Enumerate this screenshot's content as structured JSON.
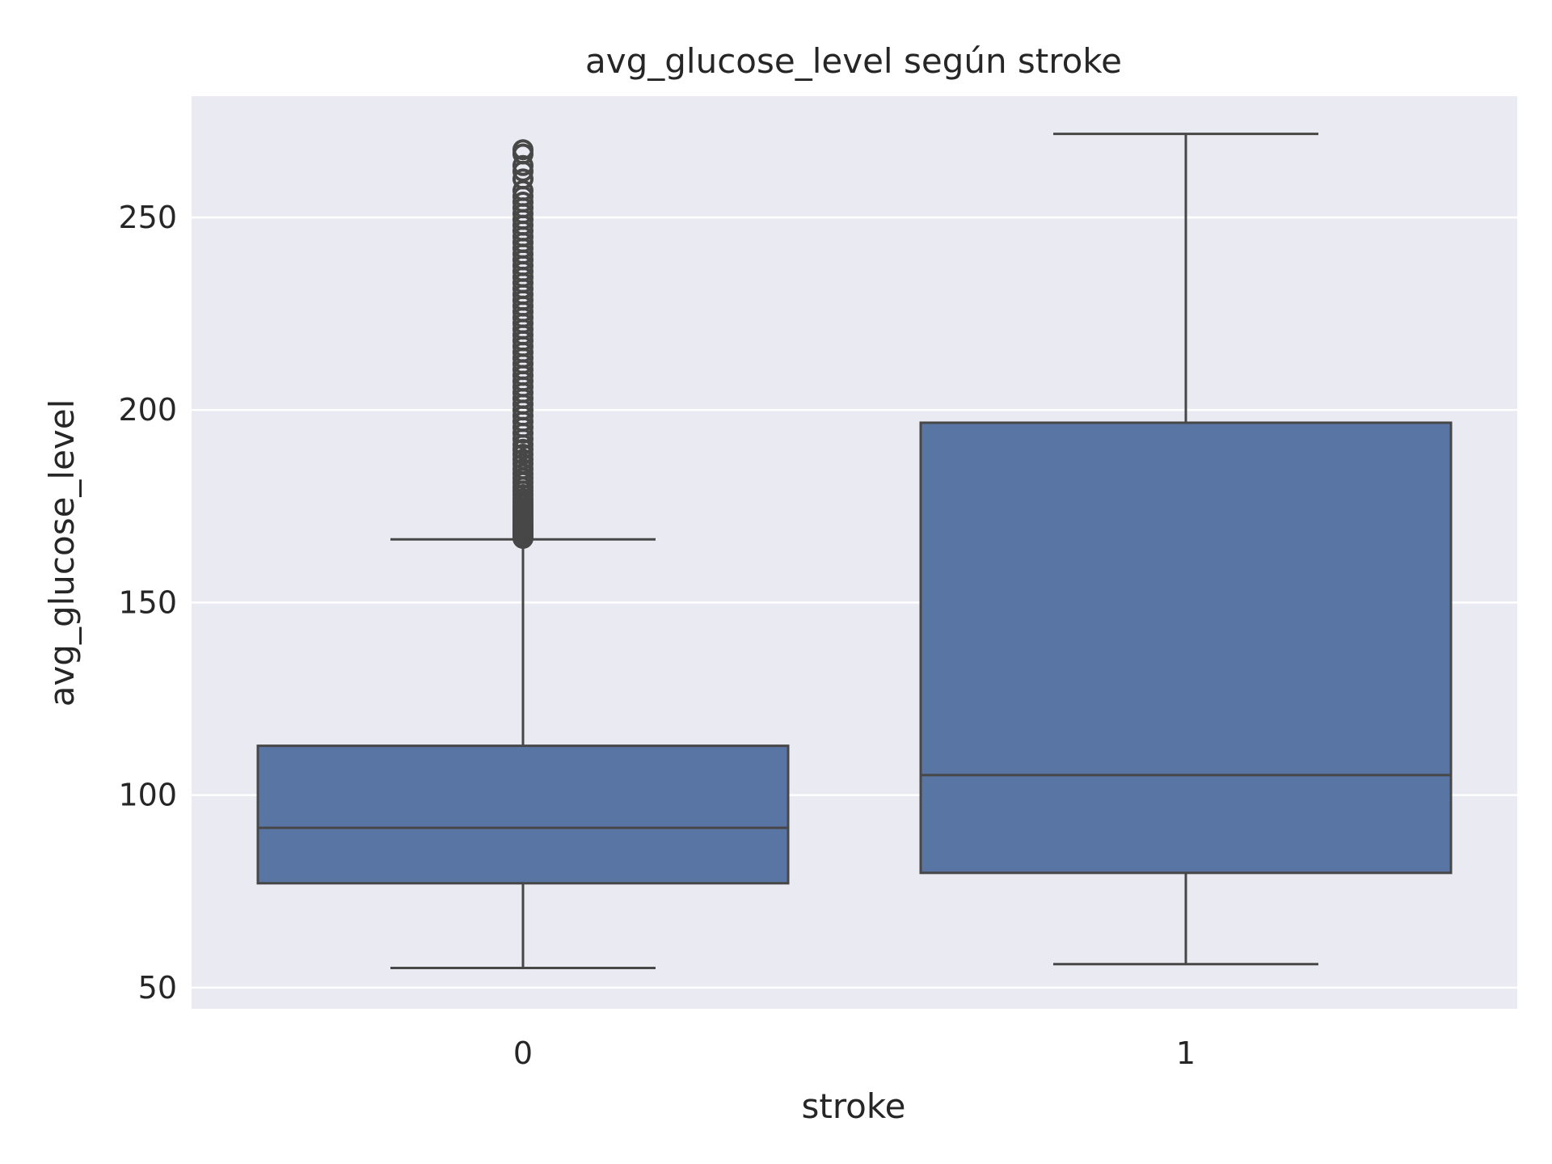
{
  "chart_data": {
    "type": "box",
    "title": "avg_glucose_level según stroke",
    "xlabel": "stroke",
    "ylabel": "avg_glucose_level",
    "categories": [
      "0",
      "1"
    ],
    "ylim": [
      44.5,
      281.5
    ],
    "yticks": [
      50,
      100,
      150,
      200,
      250
    ],
    "grid": true,
    "legend": "none",
    "colors": {
      "box_fill": "#5975A4",
      "line": "#474747",
      "background": "#EAEAF2",
      "grid": "#FFFFFF",
      "text": "#262626"
    },
    "boxes": [
      {
        "category": "0",
        "whisker_low": 55.1,
        "q1": 77.1,
        "median": 91.5,
        "q3": 112.8,
        "whisker_high": 166.4,
        "outliers": [
          166.7,
          167.0,
          167.4,
          167.8,
          168.2,
          168.6,
          169.0,
          169.5,
          170.0,
          170.5,
          171.0,
          171.6,
          172.3,
          173.0,
          173.8,
          174.5,
          175.3,
          176.1,
          177.0,
          178.0,
          179.0,
          180.0,
          181.2,
          182.3,
          183.5,
          184.7,
          186.0,
          187.2,
          188.5,
          189.8,
          191.0,
          192.5,
          194.0,
          195.5,
          197.0,
          198.5,
          200.0,
          201.5,
          203.0,
          204.5,
          206.0,
          207.5,
          209.0,
          210.5,
          212.0,
          213.5,
          215.0,
          216.5,
          218.0,
          219.5,
          221.0,
          222.5,
          224.0,
          225.5,
          227.0,
          228.5,
          230.0,
          231.5,
          233.0,
          234.5,
          236.0,
          237.5,
          239.0,
          240.5,
          242.0,
          243.5,
          245.0,
          246.5,
          248.0,
          249.5,
          251.0,
          252.5,
          254.0,
          255.5,
          257.0,
          260.0,
          262.0,
          263.5,
          266.5,
          267.6
        ]
      },
      {
        "category": "1",
        "whisker_low": 56.1,
        "q1": 79.8,
        "median": 105.2,
        "q3": 196.7,
        "whisker_high": 271.7,
        "outliers": []
      }
    ]
  }
}
